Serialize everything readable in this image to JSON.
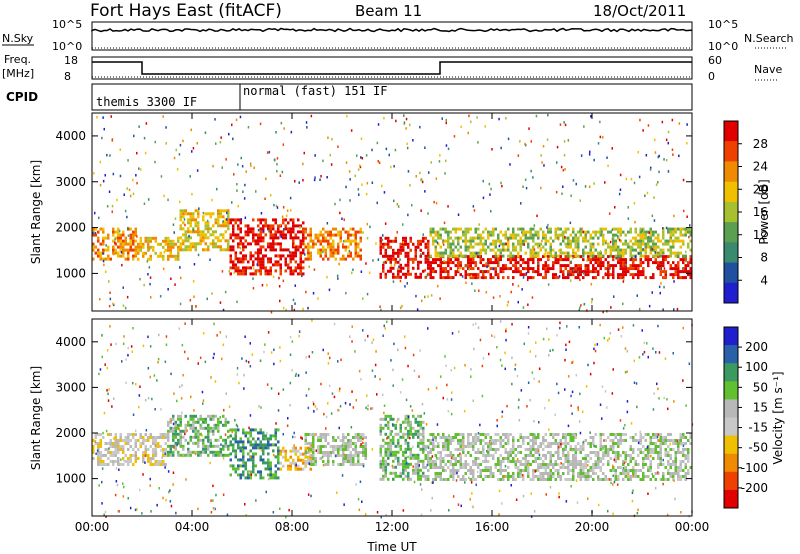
{
  "header": {
    "station": "Fort Hays East (fitACF)",
    "beam": "Beam 11",
    "date": "18/Oct/2011"
  },
  "strips": {
    "nsky_label": "N.Sky",
    "nsky_top": "10^5",
    "nsky_bot": "10^0",
    "nsearch_label": "N.Search",
    "nsearch_top": "10^5",
    "nsearch_bot": "10^0",
    "freq_label": "Freq.",
    "freq_unit": "[MHz]",
    "freq_top": "18",
    "freq_bot": "8",
    "nave_label": "Nave",
    "nave_top": "60",
    "nave_bot": "0",
    "cpid_label": "CPID",
    "cpid_1": "themis 3300 IF",
    "cpid_2": "normal (fast) 151 IF"
  },
  "colors": {
    "power": [
      "#1f1fd0",
      "#2050a0",
      "#3a8a70",
      "#5aa050",
      "#a8c030",
      "#f0c000",
      "#f08a00",
      "#f04000",
      "#e00000"
    ],
    "velocity": [
      "#e00000",
      "#f04000",
      "#f08a00",
      "#f0c000",
      "#c8c8c8",
      "#b8b8b8",
      "#60c030",
      "#3a9a60",
      "#2a60a8",
      "#1f1fd0"
    ]
  },
  "chart_data": [
    {
      "type": "heatmap",
      "name": "power",
      "ylabel": "Slant Range [km]",
      "xlabel": "",
      "x_ticks": [
        "00:00",
        "04:00",
        "08:00",
        "12:00",
        "16:00",
        "20:00",
        "00:00"
      ],
      "y_ticks": [
        "1000",
        "2000",
        "3000",
        "4000"
      ],
      "ylim": [
        180,
        4500
      ],
      "xlim_hours": [
        0,
        24
      ],
      "colorbar_label": "Power [dB]",
      "colorbar_ticks": [
        "28",
        "24",
        "20",
        "16",
        "12",
        "8",
        "4"
      ],
      "echo_regions": [
        {
          "t0": 0.0,
          "t1": 1.8,
          "r0": 1300,
          "r1": 2000,
          "level": 6
        },
        {
          "t0": 1.8,
          "t1": 3.5,
          "r0": 1300,
          "r1": 1800,
          "level": 5
        },
        {
          "t0": 3.5,
          "t1": 5.5,
          "r0": 1500,
          "r1": 2400,
          "level": 5
        },
        {
          "t0": 5.5,
          "t1": 8.5,
          "r0": 1000,
          "r1": 2200,
          "level": 8
        },
        {
          "t0": 8.5,
          "t1": 10.8,
          "r0": 1300,
          "r1": 2000,
          "level": 6
        },
        {
          "t0": 11.5,
          "t1": 13.5,
          "r0": 900,
          "r1": 1800,
          "level": 8
        },
        {
          "t0": 13.5,
          "t1": 24.0,
          "r0": 900,
          "r1": 1400,
          "level": 8
        },
        {
          "t0": 13.5,
          "t1": 24.0,
          "r0": 1400,
          "r1": 2000,
          "level": 4
        }
      ]
    },
    {
      "type": "heatmap",
      "name": "velocity",
      "ylabel": "Slant Range [km]",
      "xlabel": "Time UT",
      "x_ticks": [
        "00:00",
        "04:00",
        "08:00",
        "12:00",
        "16:00",
        "20:00",
        "00:00"
      ],
      "y_ticks": [
        "1000",
        "2000",
        "3000",
        "4000"
      ],
      "ylim": [
        180,
        4500
      ],
      "xlim_hours": [
        0,
        24
      ],
      "colorbar_label": "Velocity [m s⁻¹]",
      "colorbar_ticks": [
        "200",
        "100",
        "50",
        "15",
        "-15",
        "-50",
        "-100",
        "-200"
      ],
      "echo_regions": [
        {
          "t0": 0.0,
          "t1": 3.0,
          "r0": 1300,
          "r1": 2000,
          "level": 4
        },
        {
          "t0": 3.0,
          "t1": 5.5,
          "r0": 1500,
          "r1": 2400,
          "level": 6
        },
        {
          "t0": 5.5,
          "t1": 7.5,
          "r0": 1000,
          "r1": 2100,
          "level": 7
        },
        {
          "t0": 7.5,
          "t1": 8.8,
          "r0": 1200,
          "r1": 1700,
          "level": 3
        },
        {
          "t0": 8.5,
          "t1": 11.0,
          "r0": 1300,
          "r1": 2000,
          "level": 5
        },
        {
          "t0": 11.5,
          "t1": 13.3,
          "r0": 1000,
          "r1": 2400,
          "level": 6
        },
        {
          "t0": 13.3,
          "t1": 24.0,
          "r0": 1000,
          "r1": 2000,
          "level": 5
        }
      ]
    }
  ]
}
